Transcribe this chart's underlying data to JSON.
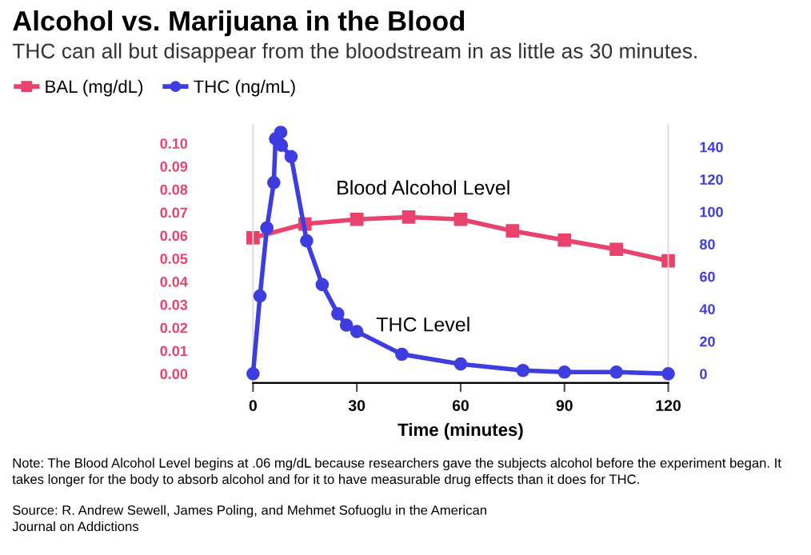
{
  "chart_data": {
    "type": "line",
    "title": "Alcohol vs. Marijuana in the Blood",
    "subtitle": "THC can all but disappear from the bloodstream in as little as 30 minutes.",
    "xlabel": "Time (minutes)",
    "series": [
      {
        "name": "BAL (mg/dL)",
        "color": "#e8436c",
        "marker": "square",
        "x": [
          0,
          15,
          30,
          45,
          60,
          75,
          90,
          105,
          120
        ],
        "values": [
          0.059,
          0.065,
          0.067,
          0.068,
          0.067,
          0.062,
          0.058,
          0.054,
          0.049
        ]
      },
      {
        "name": "THC (ng/mL)",
        "color": "#3d3de0",
        "marker": "circle",
        "axis": "y2",
        "x": [
          0,
          2,
          4,
          6,
          6.5,
          8,
          8.2,
          11,
          15.5,
          20,
          24.5,
          27,
          30,
          43,
          60,
          78,
          90,
          105,
          120
        ],
        "values": [
          0,
          48,
          90,
          118,
          145,
          149,
          141,
          134,
          82,
          55,
          37,
          30,
          26,
          12,
          6,
          2,
          1,
          1,
          0
        ]
      }
    ],
    "xlim": [
      0,
      120
    ],
    "xticks": [
      0,
      30,
      60,
      90,
      120
    ],
    "ylim": [
      -0.004,
      0.108
    ],
    "yticks": [
      {
        "value": 0,
        "label": "0.00"
      },
      {
        "value": 0.01,
        "label": "0.01"
      },
      {
        "value": 0.02,
        "label": "0.02"
      },
      {
        "value": 0.03,
        "label": "0.03"
      },
      {
        "value": 0.04,
        "label": "0.04"
      },
      {
        "value": 0.05,
        "label": "0.05"
      },
      {
        "value": 0.06,
        "label": "0.06"
      },
      {
        "value": 0.07,
        "label": "0.07"
      },
      {
        "value": 0.08,
        "label": "0.08"
      },
      {
        "value": 0.09,
        "label": "0.09"
      },
      {
        "value": 0.1,
        "label": "0.10"
      }
    ],
    "y2lim": [
      -5.7,
      153.6
    ],
    "y2ticks": [
      0,
      20,
      40,
      60,
      80,
      100,
      120,
      140
    ],
    "grid": false,
    "legend": "top left",
    "line_style": "solid",
    "annotations": [
      "Blood Alcohol Level",
      "THC Level",
      "Note: The Blood Alcohol Level begins at .06 mg/dL because researchers gave the subjects alcohol before the experiment began. It takes longer for the body to absorb alcohol and for it to have measurable drug effects than it does for THC.",
      "Source: R. Andrew Sewell, James Poling, and Mehmet Sofuoglu in the American\nJournal on Addictions"
    ]
  }
}
